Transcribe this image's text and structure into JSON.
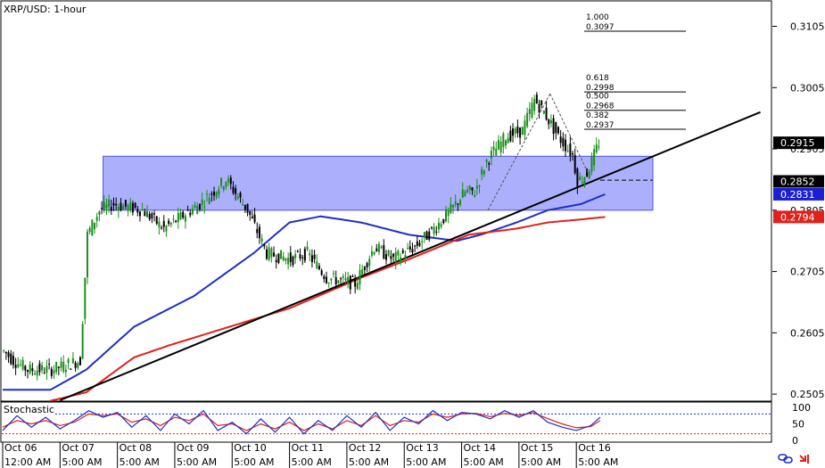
{
  "header": {
    "title": "XRP/USD: 1-hour"
  },
  "indicator": {
    "name": "Stochastic"
  },
  "footer": {
    "icons": [
      "chain-link-icon",
      "red-arrow-icon"
    ]
  },
  "colors": {
    "candle_up": "#1a8f1a",
    "candle_down": "#000000",
    "zone_fill": "#9ea2fb",
    "zone_stroke": "#4b50e6",
    "trendline": "#000000",
    "ma_blue": "#1f2fc7",
    "ma_red": "#e0201b",
    "stoch_k": "#1f2fc7",
    "stoch_d": "#e0201b",
    "tag_dark": "#000000",
    "tag_blue": "#1a1fd6",
    "tag_red": "#e0201b"
  },
  "chart_data": [
    {
      "type": "candlestick",
      "title": "XRP/USD: 1-hour",
      "y_ticks": [
        "0.3105",
        "0.3005",
        "0.2905",
        "0.2805",
        "0.2705",
        "0.2605",
        "0.2505"
      ],
      "ylim": [
        0.2495,
        0.3145
      ],
      "date_labels": [
        {
          "t": 0,
          "date": "Oct 06",
          "time": "12:00 AM"
        },
        {
          "t": 24,
          "date": "Oct 07",
          "time": "5:00 AM"
        },
        {
          "t": 48,
          "date": "Oct 08",
          "time": "5:00 AM"
        },
        {
          "t": 72,
          "date": "Oct 09",
          "time": "5:00 AM"
        },
        {
          "t": 96,
          "date": "Oct 10",
          "time": "5:00 AM"
        },
        {
          "t": 120,
          "date": "Oct 11",
          "time": "5:00 AM"
        },
        {
          "t": 144,
          "date": "Oct 12",
          "time": "5:00 AM"
        },
        {
          "t": 168,
          "date": "Oct 13",
          "time": "5:00 AM"
        },
        {
          "t": 192,
          "date": "Oct 14",
          "time": "5:00 AM"
        },
        {
          "t": 216,
          "date": "Oct 15",
          "time": "5:00 AM"
        },
        {
          "t": 240,
          "date": "Oct 16",
          "time": "5:00 AM"
        }
      ],
      "price_anchors": [
        [
          0,
          0.2575
        ],
        [
          4,
          0.256
        ],
        [
          10,
          0.2545
        ],
        [
          20,
          0.2545
        ],
        [
          32,
          0.256
        ],
        [
          35,
          0.2765
        ],
        [
          40,
          0.2805
        ],
        [
          46,
          0.2815
        ],
        [
          58,
          0.2805
        ],
        [
          67,
          0.2775
        ],
        [
          82,
          0.2815
        ],
        [
          93,
          0.2855
        ],
        [
          102,
          0.2805
        ],
        [
          110,
          0.2735
        ],
        [
          120,
          0.2725
        ],
        [
          127,
          0.2735
        ],
        [
          135,
          0.2695
        ],
        [
          147,
          0.2685
        ],
        [
          155,
          0.2745
        ],
        [
          163,
          0.2725
        ],
        [
          172,
          0.2745
        ],
        [
          180,
          0.2775
        ],
        [
          187,
          0.2805
        ],
        [
          193,
          0.2835
        ],
        [
          197,
          0.2835
        ],
        [
          202,
          0.2885
        ],
        [
          210,
          0.2925
        ],
        [
          217,
          0.2935
        ],
        [
          222,
          0.2985
        ],
        [
          226,
          0.2965
        ],
        [
          232,
          0.2925
        ],
        [
          238,
          0.2895
        ],
        [
          240,
          0.2852
        ],
        [
          244,
          0.2865
        ],
        [
          249,
          0.2915
        ]
      ],
      "candle_count": 250,
      "moving_averages": [
        {
          "color": "ma_blue",
          "points": [
            [
              0,
              0.2512
            ],
            [
              20,
              0.2512
            ],
            [
              35,
              0.2545
            ],
            [
              55,
              0.2615
            ],
            [
              80,
              0.2665
            ],
            [
              105,
              0.2735
            ],
            [
              120,
              0.2785
            ],
            [
              133,
              0.2795
            ],
            [
              150,
              0.2785
            ],
            [
              170,
              0.2765
            ],
            [
              190,
              0.2755
            ],
            [
              200,
              0.2765
            ],
            [
              215,
              0.2785
            ],
            [
              228,
              0.2805
            ],
            [
              242,
              0.2815
            ],
            [
              252,
              0.2831
            ]
          ]
        },
        {
          "color": "ma_red",
          "points": [
            [
              20,
              0.2494
            ],
            [
              35,
              0.2508
            ],
            [
              55,
              0.2565
            ],
            [
              70,
              0.2585
            ],
            [
              95,
              0.2615
            ],
            [
              120,
              0.2645
            ],
            [
              150,
              0.2695
            ],
            [
              170,
              0.2725
            ],
            [
              195,
              0.2765
            ],
            [
              215,
              0.2775
            ],
            [
              228,
              0.2785
            ],
            [
              242,
              0.279
            ],
            [
              252,
              0.2794
            ]
          ]
        }
      ],
      "trendline": {
        "from": [
          24,
          0.2495
        ],
        "to": [
          317,
          0.2965
        ]
      },
      "resistance_zone": {
        "t_start": 42,
        "t_end": 272,
        "top": 0.2893,
        "bottom": 0.2805
      },
      "dashed_level": {
        "t_start": 250,
        "t_end": 272,
        "price": 0.2854
      },
      "fib_swing_lines": [
        {
          "from": [
            203,
            0.2805
          ],
          "to": [
            229,
            0.2995
          ]
        },
        {
          "from": [
            229,
            0.2995
          ],
          "to": [
            245,
            0.2865
          ]
        }
      ],
      "fib_levels": [
        {
          "ratio": "1.000",
          "price": "0.3097",
          "level": 0.3097
        },
        {
          "ratio": "0.618",
          "price": "0.2998",
          "level": 0.2998
        },
        {
          "ratio": "0.500",
          "price": "0.2968",
          "level": 0.2968
        },
        {
          "ratio": "0.382",
          "price": "0.2937",
          "level": 0.2937
        }
      ],
      "price_tags": [
        {
          "value": "0.2915",
          "level": 0.2915,
          "color": "tag_dark",
          "text_color": "#ffffff"
        },
        {
          "value": "0.2852",
          "level": 0.2852,
          "color": "tag_dark",
          "text_color": "#ffffff"
        },
        {
          "value": "0.2831",
          "level": 0.2831,
          "color": "tag_blue",
          "text_color": "#ffffff"
        },
        {
          "value": "0.2794",
          "level": 0.2794,
          "color": "tag_red",
          "text_color": "#ffffff"
        }
      ]
    },
    {
      "type": "line",
      "title": "Stochastic",
      "y_ticks": [
        "100",
        "50",
        "0"
      ],
      "ylim": [
        0,
        100
      ],
      "overbought": 80,
      "oversold": 20,
      "k_points": [
        [
          0,
          30
        ],
        [
          6,
          75
        ],
        [
          12,
          40
        ],
        [
          18,
          70
        ],
        [
          24,
          35
        ],
        [
          30,
          60
        ],
        [
          36,
          90
        ],
        [
          42,
          70
        ],
        [
          48,
          85
        ],
        [
          54,
          40
        ],
        [
          60,
          75
        ],
        [
          66,
          30
        ],
        [
          72,
          80
        ],
        [
          78,
          50
        ],
        [
          84,
          90
        ],
        [
          90,
          30
        ],
        [
          96,
          55
        ],
        [
          102,
          20
        ],
        [
          108,
          65
        ],
        [
          114,
          25
        ],
        [
          120,
          70
        ],
        [
          126,
          20
        ],
        [
          132,
          60
        ],
        [
          138,
          30
        ],
        [
          144,
          75
        ],
        [
          150,
          40
        ],
        [
          156,
          85
        ],
        [
          162,
          30
        ],
        [
          168,
          70
        ],
        [
          174,
          50
        ],
        [
          180,
          90
        ],
        [
          186,
          60
        ],
        [
          192,
          85
        ],
        [
          198,
          80
        ],
        [
          204,
          65
        ],
        [
          210,
          90
        ],
        [
          216,
          70
        ],
        [
          222,
          90
        ],
        [
          228,
          55
        ],
        [
          234,
          40
        ],
        [
          240,
          30
        ],
        [
          246,
          45
        ],
        [
          250,
          70
        ]
      ],
      "d_points": [
        [
          0,
          40
        ],
        [
          6,
          60
        ],
        [
          12,
          50
        ],
        [
          18,
          60
        ],
        [
          24,
          45
        ],
        [
          30,
          55
        ],
        [
          36,
          80
        ],
        [
          42,
          75
        ],
        [
          48,
          80
        ],
        [
          54,
          55
        ],
        [
          60,
          65
        ],
        [
          66,
          45
        ],
        [
          72,
          70
        ],
        [
          78,
          60
        ],
        [
          84,
          80
        ],
        [
          90,
          45
        ],
        [
          96,
          50
        ],
        [
          102,
          30
        ],
        [
          108,
          50
        ],
        [
          114,
          35
        ],
        [
          120,
          55
        ],
        [
          126,
          30
        ],
        [
          132,
          50
        ],
        [
          138,
          35
        ],
        [
          144,
          60
        ],
        [
          150,
          45
        ],
        [
          156,
          75
        ],
        [
          162,
          45
        ],
        [
          168,
          60
        ],
        [
          174,
          55
        ],
        [
          180,
          80
        ],
        [
          186,
          70
        ],
        [
          192,
          80
        ],
        [
          198,
          82
        ],
        [
          204,
          72
        ],
        [
          210,
          82
        ],
        [
          216,
          76
        ],
        [
          222,
          84
        ],
        [
          228,
          66
        ],
        [
          234,
          50
        ],
        [
          240,
          38
        ],
        [
          246,
          42
        ],
        [
          250,
          60
        ]
      ]
    }
  ]
}
